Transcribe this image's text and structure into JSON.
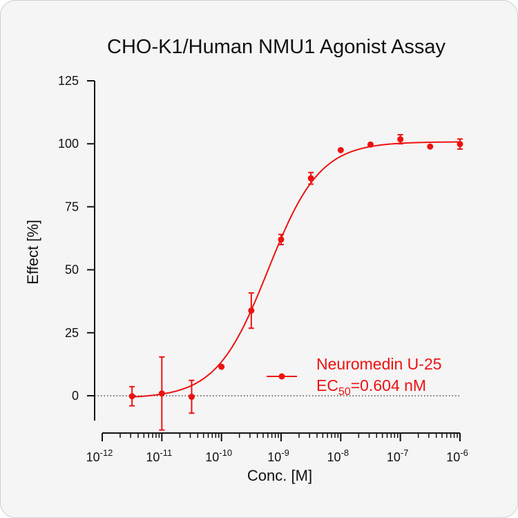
{
  "chart_data": {
    "type": "scatter",
    "title": "CHO-K1/Human NMU1 Agonist Assay",
    "xlabel": "Conc. [M]",
    "ylabel": "Effect  [%]",
    "x_scale": "log",
    "xlim": [
      1e-12,
      1e-06
    ],
    "ylim": [
      -10,
      125
    ],
    "x_ticks": [
      {
        "value": 1e-12,
        "base": "10",
        "exp": "-12"
      },
      {
        "value": 1e-11,
        "base": "10",
        "exp": "-11"
      },
      {
        "value": 1e-10,
        "base": "10",
        "exp": "-10"
      },
      {
        "value": 1e-09,
        "base": "10",
        "exp": "-9"
      },
      {
        "value": 1e-08,
        "base": "10",
        "exp": "-8"
      },
      {
        "value": 1e-07,
        "base": "10",
        "exp": "-7"
      },
      {
        "value": 1e-06,
        "base": "10",
        "exp": "-6"
      }
    ],
    "y_ticks": [
      0,
      25,
      50,
      75,
      100,
      125
    ],
    "zero_reference_line": "dotted",
    "grid": false,
    "legend_position": "bottom-right",
    "series": [
      {
        "name": "Neuromedin U-25",
        "color": "#ee1111",
        "points": [
          {
            "x": 3.16e-12,
            "y": -0.2,
            "err": 3.8
          },
          {
            "x": 1e-11,
            "y": 0.9,
            "err": 14.5
          },
          {
            "x": 3.16e-11,
            "y": -0.4,
            "err": 6.5
          },
          {
            "x": 1e-10,
            "y": 11.5,
            "err": 0
          },
          {
            "x": 3.16e-10,
            "y": 33.8,
            "err": 7.0
          },
          {
            "x": 1e-09,
            "y": 62.0,
            "err": 2.0
          },
          {
            "x": 3.16e-09,
            "y": 86.3,
            "err": 2.3
          },
          {
            "x": 1e-08,
            "y": 97.5,
            "err": 0
          },
          {
            "x": 3.16e-08,
            "y": 99.7,
            "err": 0
          },
          {
            "x": 1e-07,
            "y": 101.8,
            "err": 1.8
          },
          {
            "x": 3.16e-07,
            "y": 98.9,
            "err": 0
          },
          {
            "x": 1e-06,
            "y": 99.9,
            "err": 2.0
          }
        ],
        "fit": {
          "model": "four-parameter logistic",
          "bottom": -1,
          "top": 100.8,
          "ec50": 6.04e-10,
          "hill": 1.0
        }
      }
    ],
    "legend": {
      "series_label": "Neuromedin U-25",
      "ec_prefix": "EC",
      "ec_subscript": "50",
      "ec_value": "=0.604 nM"
    }
  }
}
